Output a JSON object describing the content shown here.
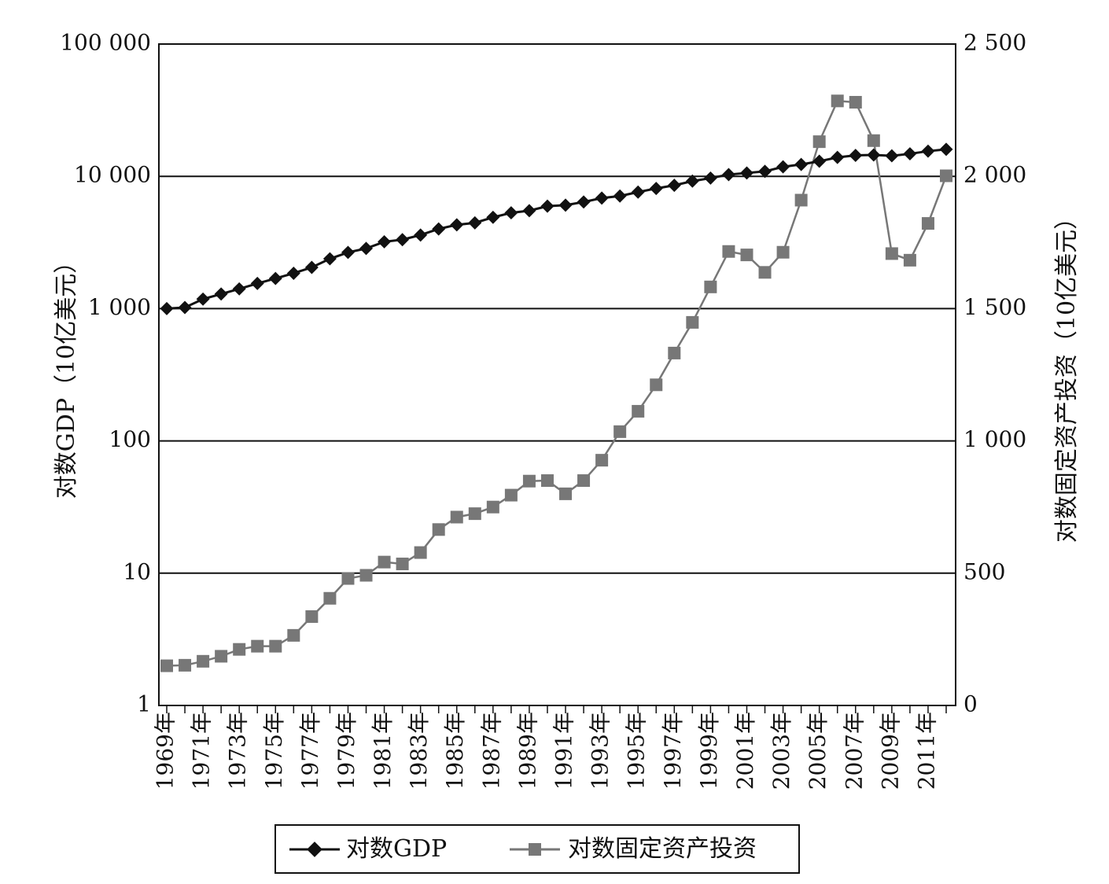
{
  "chart_data": {
    "type": "line",
    "title": "",
    "x": [
      "1969年",
      "1970年",
      "1971年",
      "1972年",
      "1973年",
      "1974年",
      "1975年",
      "1976年",
      "1977年",
      "1978年",
      "1979年",
      "1980年",
      "1981年",
      "1982年",
      "1983年",
      "1984年",
      "1985年",
      "1986年",
      "1987年",
      "1988年",
      "1989年",
      "1990年",
      "1991年",
      "1992年",
      "1993年",
      "1994年",
      "1995年",
      "1996年",
      "1997年",
      "1998年",
      "1999年",
      "2000年",
      "2001年",
      "2002年",
      "2003年",
      "2004年",
      "2005年",
      "2006年",
      "2007年",
      "2008年",
      "2009年",
      "2010年",
      "2011年",
      "2012年"
    ],
    "x_tick_labels": [
      "1969年",
      "1971年",
      "1973年",
      "1975年",
      "1977年",
      "1979年",
      "1981年",
      "1983年",
      "1985年",
      "1987年",
      "1989年",
      "1991年",
      "1993年",
      "1995年",
      "1997年",
      "1999年",
      "2001年",
      "2003年",
      "2005年",
      "2007年",
      "2009年",
      "2011年"
    ],
    "ylabel_left": "对数GDP（10亿美元）",
    "ylabel_right": "对数固定资产投资（10亿美元）",
    "y_left_scale": "log",
    "y_left_range": [
      1,
      100000
    ],
    "y_left_ticks": [
      1,
      10,
      100,
      1000,
      10000,
      100000
    ],
    "y_left_tick_labels": [
      "1",
      "10",
      "100",
      "1 000",
      "10 000",
      "100 000"
    ],
    "y_right_scale": "linear",
    "y_right_range": [
      0,
      2500
    ],
    "y_right_ticks": [
      0,
      500,
      1000,
      1500,
      2000,
      2500
    ],
    "y_right_tick_labels": [
      "0",
      "500",
      "1 000",
      "1 500",
      "2 000",
      "2 500"
    ],
    "grid": "horizontal",
    "legend_position": "bottom",
    "series": [
      {
        "name": "对数GDP",
        "axis": "left",
        "color": "#111111",
        "marker": "diamond",
        "values": [
          1000,
          1020,
          1180,
          1290,
          1410,
          1550,
          1690,
          1850,
          2050,
          2380,
          2660,
          2850,
          3200,
          3320,
          3600,
          4000,
          4300,
          4450,
          4900,
          5300,
          5500,
          5950,
          6050,
          6400,
          6850,
          7100,
          7600,
          8100,
          8550,
          9200,
          9700,
          10300,
          10600,
          10900,
          11800,
          12300,
          13000,
          13900,
          14400,
          14500,
          14300,
          14800,
          15500,
          16000
        ]
      },
      {
        "name": "对数固定资产投资",
        "axis": "right",
        "color": "#777777",
        "marker": "square",
        "values": [
          150,
          152,
          167,
          186,
          212,
          224,
          224,
          265,
          336,
          405,
          480,
          492,
          542,
          535,
          578,
          665,
          712,
          725,
          750,
          795,
          848,
          850,
          800,
          850,
          927,
          1035,
          1112,
          1212,
          1332,
          1448,
          1582,
          1716,
          1703,
          1637,
          1713,
          1910,
          2131,
          2285,
          2280,
          2135,
          1708,
          1683,
          1822,
          2002
        ]
      }
    ]
  }
}
